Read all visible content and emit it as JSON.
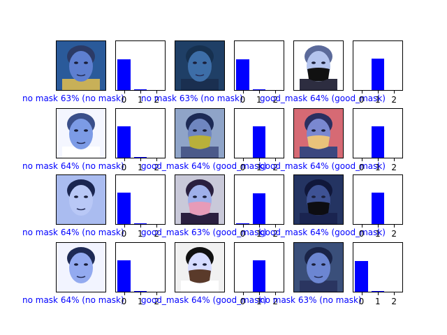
{
  "chart_data": [
    {
      "caption": "no mask 63% (no mask)",
      "image": "elderly-man-face",
      "type": "bar",
      "categories": [
        0,
        1,
        2
      ],
      "values": [
        0.63,
        0.02,
        0.0
      ],
      "ylim": [
        0,
        1
      ],
      "tick_labels": [
        "0",
        "1",
        "2"
      ]
    },
    {
      "caption": "no mask 63% (no mask)",
      "image": "woman-blue-tint-face",
      "type": "bar",
      "categories": [
        0,
        1,
        2
      ],
      "values": [
        0.63,
        0.02,
        0.0
      ],
      "ylim": [
        0,
        1
      ],
      "tick_labels": [
        "0",
        "1",
        "2"
      ]
    },
    {
      "caption": "good_mask 64% (good_mask)",
      "image": "woman-black-mask",
      "type": "bar",
      "categories": [
        0,
        1,
        2
      ],
      "values": [
        0.0,
        0.64,
        0.0
      ],
      "ylim": [
        0,
        1
      ],
      "tick_labels": [
        "0",
        "1",
        "2"
      ]
    },
    {
      "caption": "no mask 64% (no mask)",
      "image": "woman-white-bg-face",
      "type": "bar",
      "categories": [
        0,
        1,
        2
      ],
      "values": [
        0.64,
        0.01,
        0.0
      ],
      "ylim": [
        0,
        1
      ],
      "tick_labels": [
        "0",
        "1",
        "2"
      ]
    },
    {
      "caption": "good_mask 64% (good_mask)",
      "image": "woman-green-mask",
      "type": "bar",
      "categories": [
        0,
        1,
        2
      ],
      "values": [
        0.0,
        0.64,
        0.0
      ],
      "ylim": [
        0,
        1
      ],
      "tick_labels": [
        "0",
        "1",
        "2"
      ]
    },
    {
      "caption": "good_mask 64% (good_mask)",
      "image": "woman-yellow-mask",
      "type": "bar",
      "categories": [
        0,
        1,
        2
      ],
      "values": [
        0.0,
        0.64,
        0.0
      ],
      "ylim": [
        0,
        1
      ],
      "tick_labels": [
        "0",
        "1",
        "2"
      ]
    },
    {
      "caption": "no mask 64% (no mask)",
      "image": "man-face-closeup",
      "type": "bar",
      "categories": [
        0,
        1,
        2
      ],
      "values": [
        0.64,
        0.01,
        0.0
      ],
      "ylim": [
        0,
        1
      ],
      "tick_labels": [
        "0",
        "1",
        "2"
      ]
    },
    {
      "caption": "good_mask 63% (good_mask)",
      "image": "woman-pink-mask",
      "type": "bar",
      "categories": [
        0,
        1,
        2
      ],
      "values": [
        0.02,
        0.63,
        0.0
      ],
      "ylim": [
        0,
        1
      ],
      "tick_labels": [
        "0",
        "1",
        "2"
      ]
    },
    {
      "caption": "good_mask 64% (good_mask)",
      "image": "person-dark-mask",
      "type": "bar",
      "categories": [
        0,
        1,
        2
      ],
      "values": [
        0.0,
        0.64,
        0.0
      ],
      "ylim": [
        0,
        1
      ],
      "tick_labels": [
        "0",
        "1",
        "2"
      ]
    },
    {
      "caption": "no mask 64% (no mask)",
      "image": "man-face-bright",
      "type": "bar",
      "categories": [
        0,
        1,
        2
      ],
      "values": [
        0.64,
        0.01,
        0.0
      ],
      "ylim": [
        0,
        1
      ],
      "tick_labels": [
        "0",
        "1",
        "2"
      ]
    },
    {
      "caption": "good_mask 64% (good_mask)",
      "image": "woman-brown-mask",
      "type": "bar",
      "categories": [
        0,
        1,
        2
      ],
      "values": [
        0.0,
        0.64,
        0.0
      ],
      "ylim": [
        0,
        1
      ],
      "tick_labels": [
        "0",
        "1",
        "2"
      ]
    },
    {
      "caption": "no mask 63% (no mask)",
      "image": "young-man-face",
      "type": "bar",
      "categories": [
        0,
        1,
        2
      ],
      "values": [
        0.63,
        0.02,
        0.0
      ],
      "ylim": [
        0,
        1
      ],
      "tick_labels": [
        "0",
        "1",
        "2"
      ]
    }
  ],
  "colors": {
    "caption": "#0000ff",
    "bar": "#0000ff"
  }
}
